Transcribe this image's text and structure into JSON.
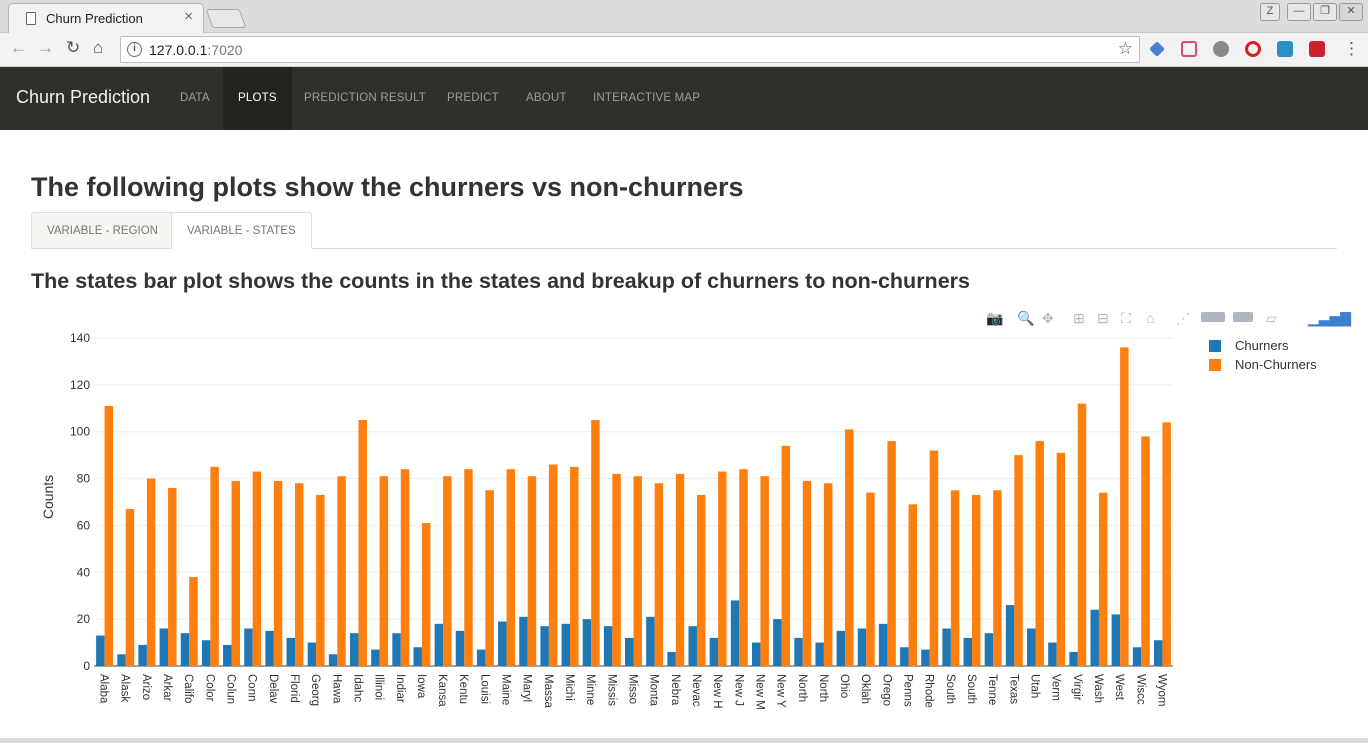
{
  "browser": {
    "tab_title": "Churn Prediction",
    "tab_close": "×",
    "url_host": "127.0.0.1",
    "url_port": ":7020"
  },
  "navbar": {
    "brand": "Churn Prediction",
    "items": [
      "DATA",
      "PLOTS",
      "PREDICTION RESULT",
      "PREDICT",
      "ABOUT",
      "INTERACTIVE MAP"
    ],
    "active": "PLOTS"
  },
  "page": {
    "title": "The following plots show the churners vs non-churners",
    "tabs": [
      "VARIABLE - REGION",
      "VARIABLE - STATES"
    ],
    "active_tab": "VARIABLE - STATES",
    "subtitle": "The states bar plot shows the counts in the states and breakup of churners to non-churners"
  },
  "colors": {
    "churners": "#1f77b4",
    "non_churners": "#ff7f0e",
    "navbar": "#2f302c"
  },
  "chart_data": {
    "type": "bar",
    "ylabel": "Counts",
    "ylim": [
      0,
      140
    ],
    "yticks": [
      0,
      20,
      40,
      60,
      80,
      100,
      120,
      140
    ],
    "legend_position": "top-right",
    "categories": [
      "Alaba",
      "Alask",
      "Arizo",
      "Arkar",
      "Califo",
      "Color",
      "Colun",
      "Conn",
      "Delav",
      "Florid",
      "Georg",
      "Hawa",
      "Idahc",
      "Illinoi",
      "Indiar",
      "Iowa",
      "Kansa",
      "Kentu",
      "Louisi",
      "Maine",
      "Maryl",
      "Massa",
      "Michi",
      "Minne",
      "Missis",
      "Misso",
      "Monta",
      "Nebra",
      "Nevac",
      "New H",
      "New J",
      "New M",
      "New Y",
      "North",
      "North",
      "Ohio",
      "Oklah",
      "Orego",
      "Penns",
      "Rhode",
      "South",
      "South",
      "Tenne",
      "Texas",
      "Utah",
      "Verm",
      "Virgir",
      "Wash",
      "West",
      "Wiscc",
      "Wyom"
    ],
    "series": [
      {
        "name": "Churners",
        "values": [
          13,
          5,
          9,
          16,
          14,
          11,
          9,
          16,
          15,
          12,
          10,
          5,
          14,
          7,
          14,
          8,
          18,
          15,
          7,
          19,
          21,
          17,
          18,
          20,
          17,
          12,
          21,
          6,
          17,
          12,
          28,
          10,
          20,
          12,
          10,
          15,
          16,
          18,
          8,
          7,
          16,
          12,
          14,
          26,
          16,
          10,
          6,
          24,
          22,
          8,
          11
        ]
      },
      {
        "name": "Non-Churners",
        "values": [
          111,
          67,
          80,
          76,
          38,
          85,
          79,
          83,
          79,
          78,
          73,
          81,
          105,
          81,
          84,
          61,
          81,
          84,
          75,
          84,
          81,
          86,
          85,
          105,
          82,
          81,
          78,
          82,
          73,
          83,
          84,
          81,
          94,
          79,
          78,
          101,
          74,
          96,
          69,
          92,
          75,
          73,
          75,
          90,
          96,
          91,
          112,
          74,
          136,
          98,
          104
        ]
      }
    ]
  }
}
